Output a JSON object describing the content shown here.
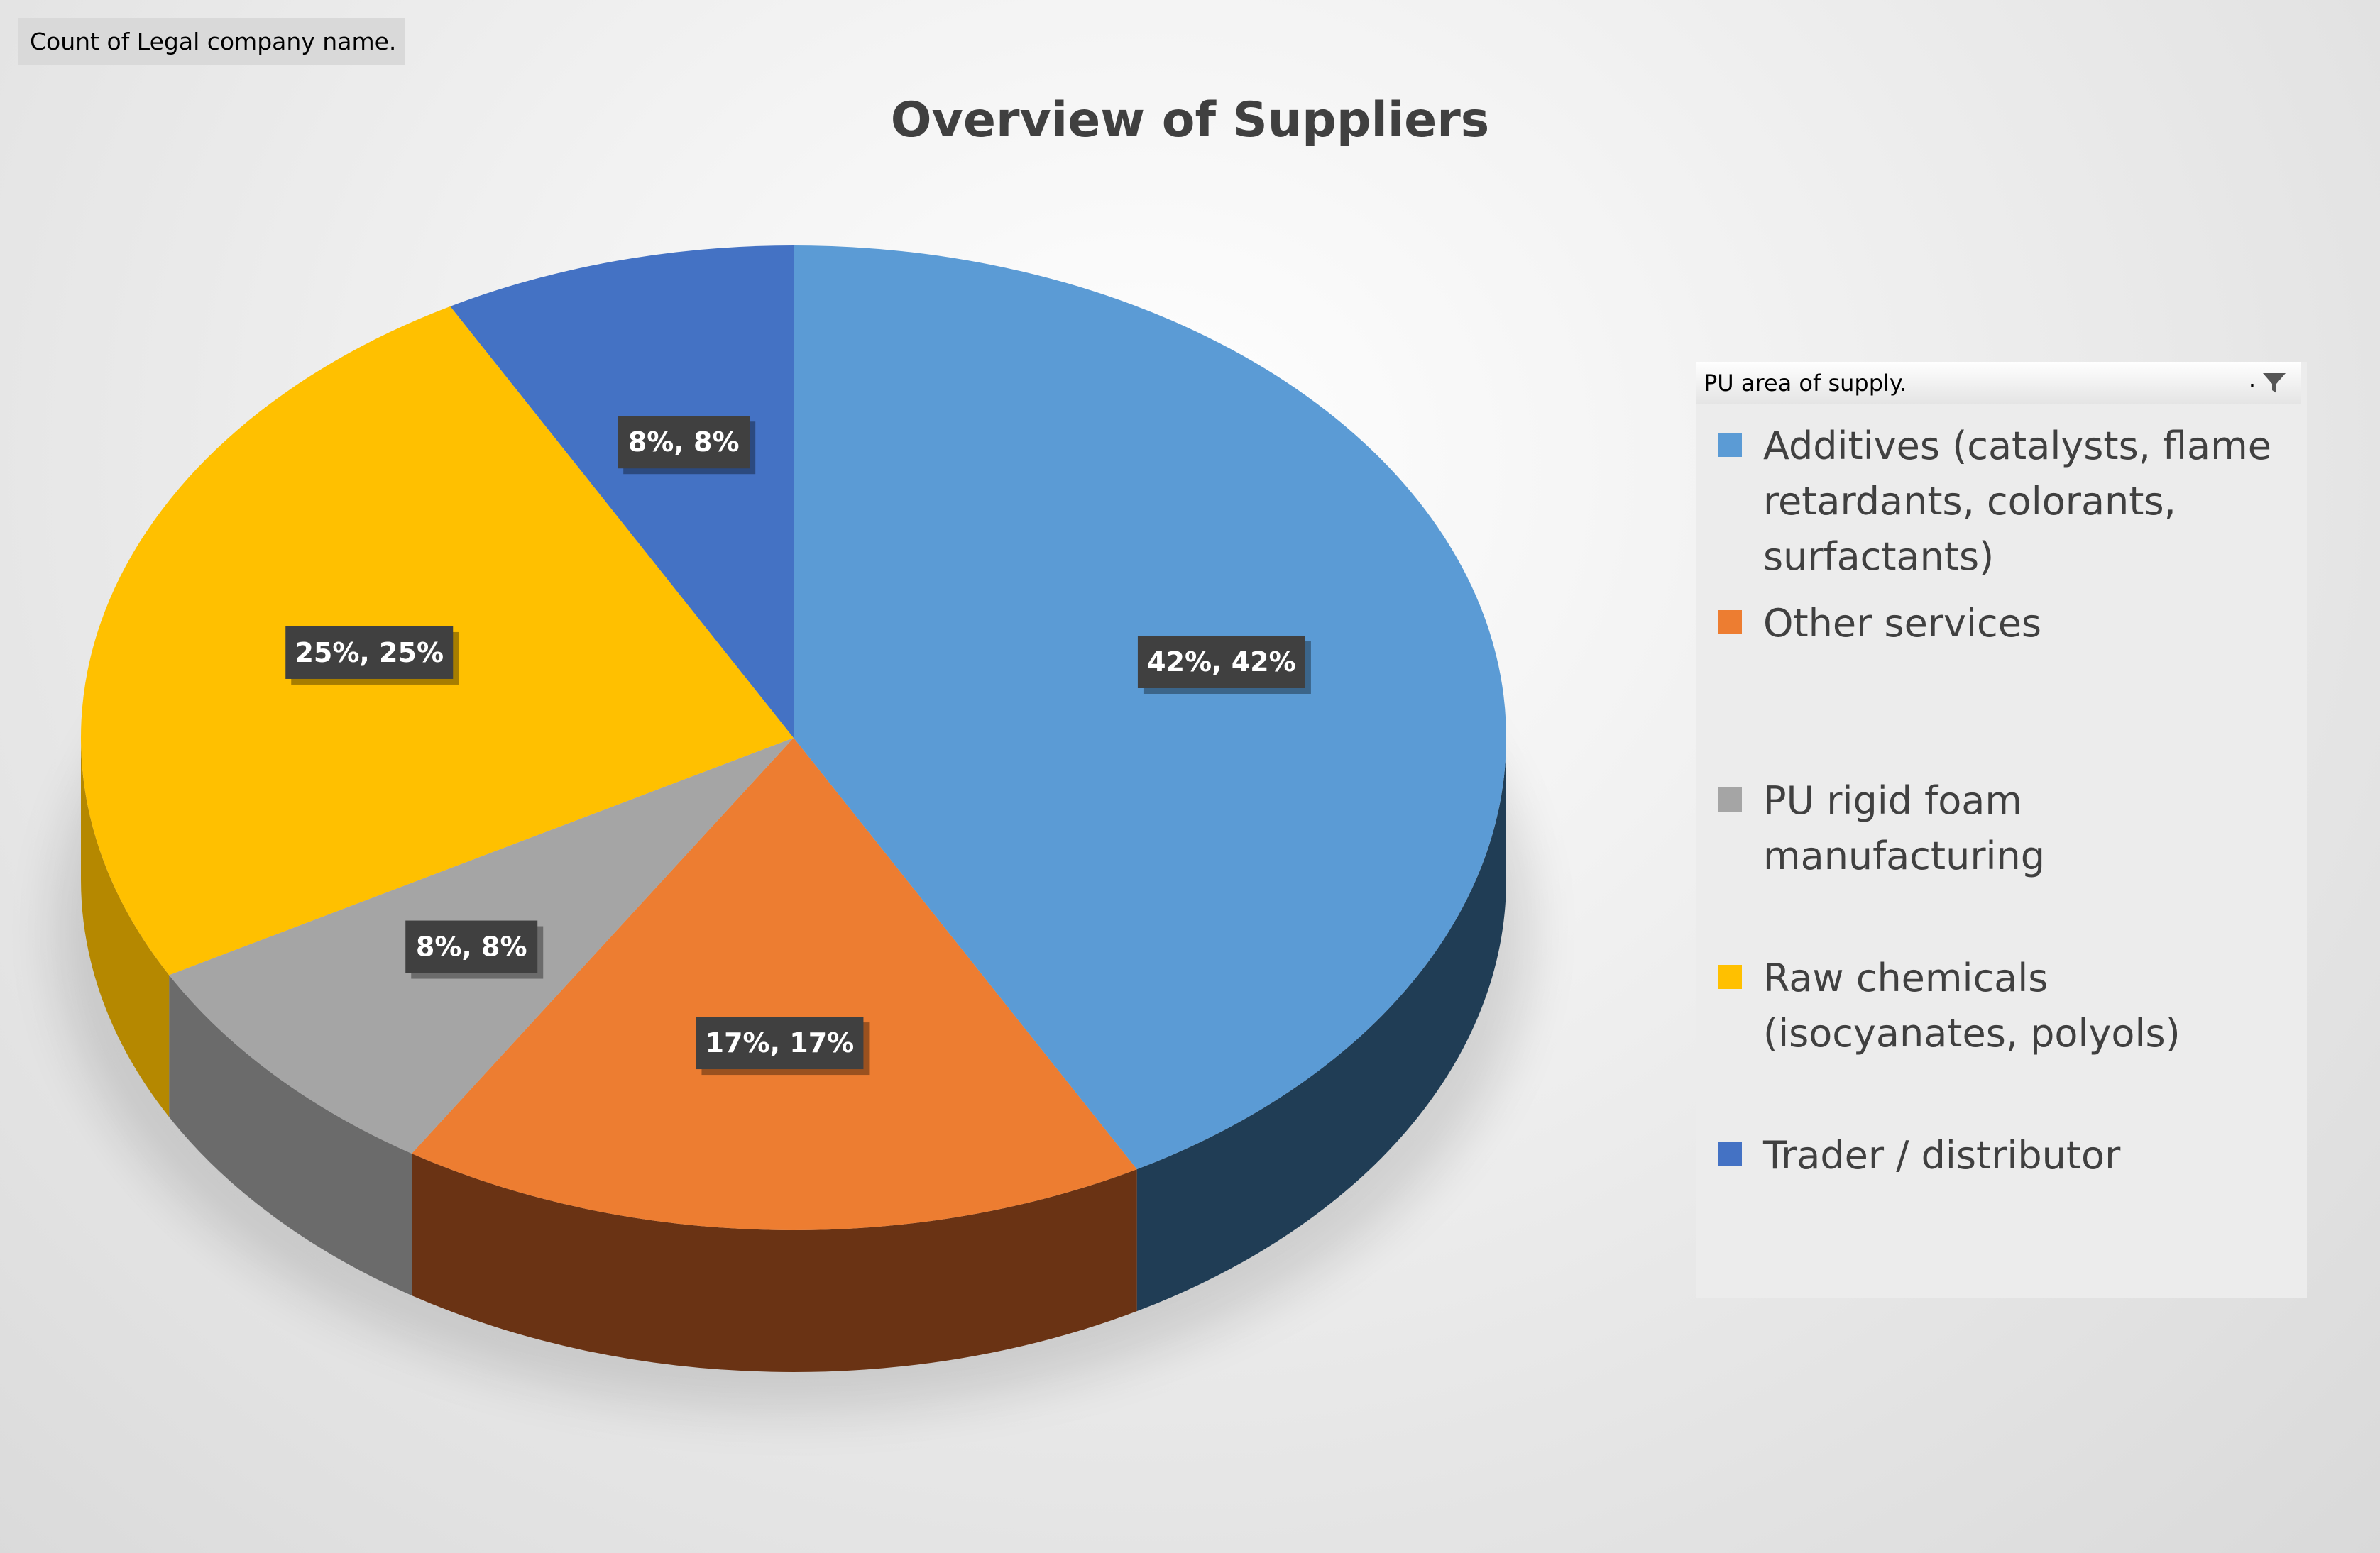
{
  "value_field": {
    "label": "Count of Legal company name."
  },
  "chart_data": {
    "type": "pie",
    "title": "Overview of Suppliers",
    "legend_title": "PU area of supply.",
    "legend_marker": ".",
    "legend_position": "right",
    "slices": [
      {
        "name": "Additives (catalysts, flame retardants, colorants, surfactants)",
        "value": 42,
        "data_label": "42%, 42%",
        "color": "#5b9bd5",
        "side_color": "#203d55"
      },
      {
        "name": "Other services",
        "value": 17,
        "data_label": "17%, 17%",
        "color": "#ed7d31",
        "side_color": "#6a3314"
      },
      {
        "name": "PU rigid foam manufacturing",
        "value": 8,
        "data_label": "8%, 8%",
        "color": "#a5a5a5",
        "side_color": "#6b6b6b"
      },
      {
        "name": "Raw chemicals (isocyanates, polyols)",
        "value": 25,
        "data_label": "25%, 25%",
        "color": "#ffc000",
        "side_color": "#b58800"
      },
      {
        "name": "Trader / distributor",
        "value": 8,
        "data_label": "8%, 8%",
        "color": "#4472c4",
        "side_color": "#25406e"
      }
    ]
  }
}
